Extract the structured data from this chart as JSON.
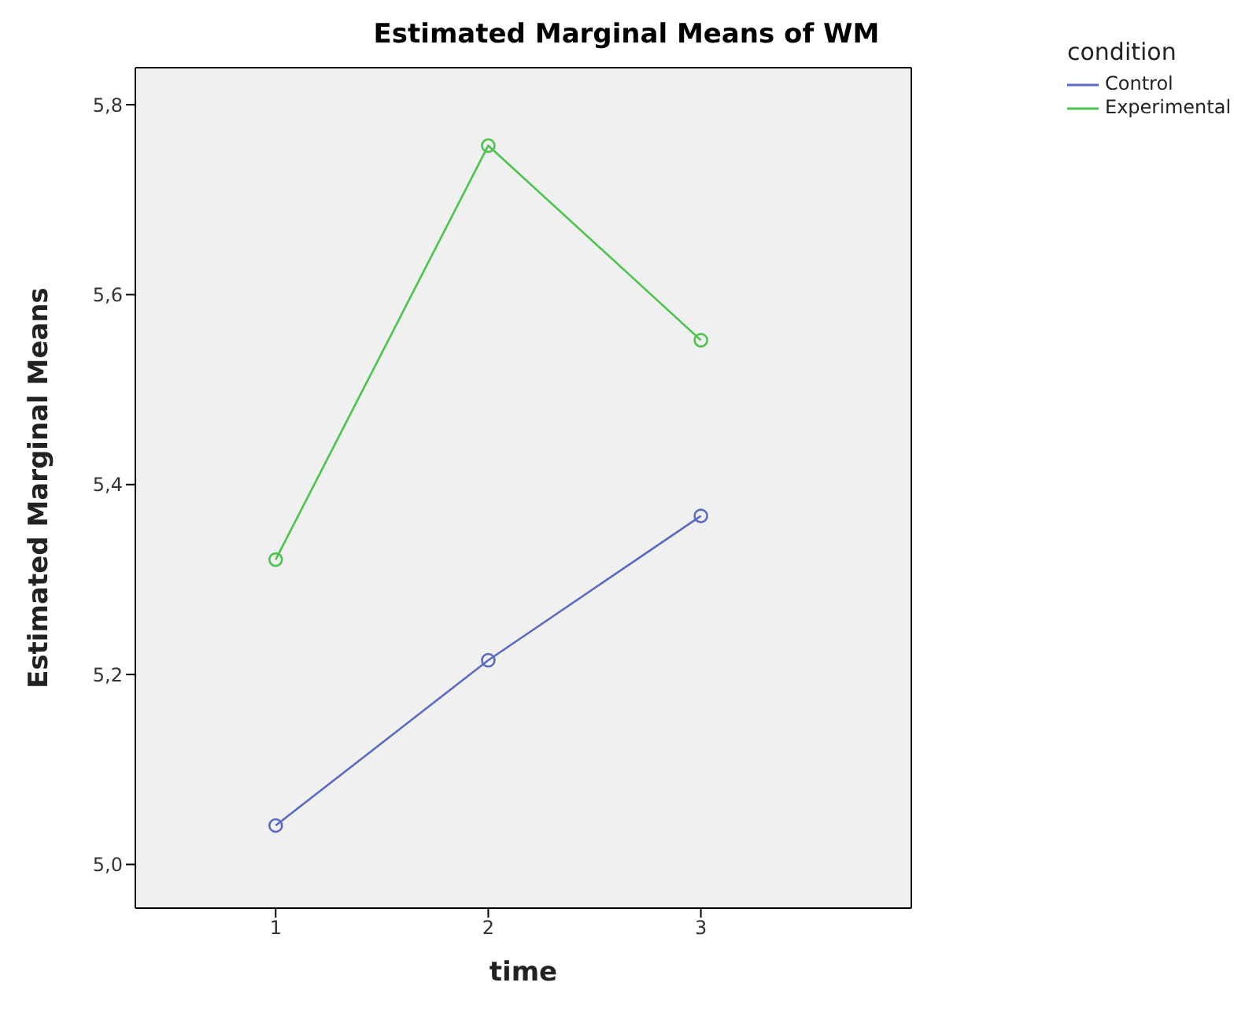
{
  "chart_data": {
    "type": "line",
    "title": "Estimated Marginal Means of WM",
    "xlabel": "time",
    "ylabel": "Estimated Marginal Means",
    "legend_title": "condition",
    "x": [
      1,
      2,
      3
    ],
    "series": [
      {
        "name": "Control",
        "color": "#5b6bbf",
        "values": [
          5.041,
          5.215,
          5.367
        ]
      },
      {
        "name": "Experimental",
        "color": "#4cc34c",
        "values": [
          5.321,
          5.757,
          5.552
        ]
      }
    ],
    "xlim": [
      0.34,
      3.99
    ],
    "xticks": [
      1,
      2,
      3
    ],
    "ylim": [
      4.954,
      5.839
    ],
    "yticks": [
      {
        "value": 5.0,
        "label": "5,0"
      },
      {
        "value": 5.2,
        "label": "5,2"
      },
      {
        "value": 5.4,
        "label": "5,4"
      },
      {
        "value": 5.6,
        "label": "5,6"
      },
      {
        "value": 5.8,
        "label": "5,8"
      }
    ],
    "grid": false,
    "legend": "top right",
    "marker": "circle",
    "line_style": "solid"
  }
}
